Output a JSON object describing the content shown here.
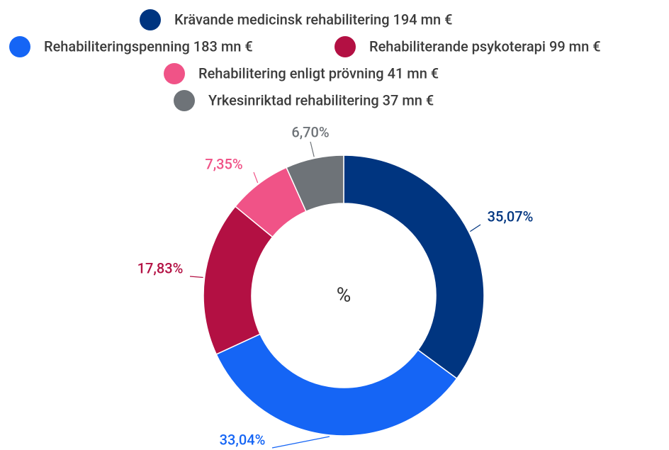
{
  "chart_data": {
    "type": "donut",
    "center_text": "%",
    "series": [
      {
        "name": "Krävande medicinsk rehabilitering 194 mn €",
        "color": "#003580",
        "values": [
          35.07
        ],
        "value_labels": [
          "35,07%"
        ]
      },
      {
        "name": "Rehabiliteringspenning 183 mn €",
        "color": "#1565f5",
        "values": [
          33.04
        ],
        "value_labels": [
          "33,04%"
        ]
      },
      {
        "name": "Rehabiliterande psykoterapi 99 mn €",
        "color": "#b31043",
        "values": [
          17.83
        ],
        "value_labels": [
          "17,83%"
        ]
      },
      {
        "name": "Rehabilitering enligt prövning 41 mn €",
        "color": "#f05387",
        "values": [
          7.35
        ],
        "value_labels": [
          "7,35%"
        ]
      },
      {
        "name": "Yrkesinriktad rehabilitering 37 mn €",
        "color": "#6e7378",
        "values": [
          6.7
        ],
        "value_labels": [
          "6,70%"
        ]
      }
    ]
  }
}
